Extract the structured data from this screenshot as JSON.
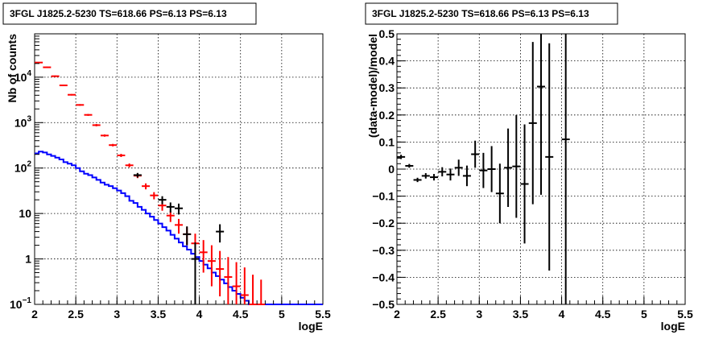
{
  "chart_data": [
    {
      "type": "scatter",
      "title": "3FGL J1825.2-5230 TS=618.66 PS=6.13 PS=6.13",
      "xlabel": "logE",
      "ylabel": "Nb of counts",
      "xlim": [
        2,
        5.5
      ],
      "ylim": [
        0.1,
        90000
      ],
      "yscale": "log",
      "grid": true,
      "x_ticks": [
        "2",
        "2.5",
        "3",
        "3.5",
        "4",
        "4.5",
        "5",
        "5.5"
      ],
      "y_ticks": [
        "10",
        "1",
        "10⁻¹"
      ],
      "y_ticks_labels": [
        "10^{-1}",
        "1",
        "10",
        "10^{2}",
        "10^{3}",
        "10^{4}"
      ],
      "y_tick_label_parts": [
        {
          "base": "10",
          "exp": "-1",
          "value": 0.1
        },
        {
          "base": "1",
          "exp": "",
          "value": 1
        },
        {
          "base": "10",
          "exp": "",
          "value": 10
        },
        {
          "base": "10",
          "exp": "2",
          "value": 100
        },
        {
          "base": "10",
          "exp": "3",
          "value": 1000
        },
        {
          "base": "10",
          "exp": "4",
          "value": 10000
        }
      ],
      "series": [
        {
          "color": "#0000ff",
          "style": "step",
          "edges": [
            2.0,
            2.05,
            2.1,
            2.15,
            2.2,
            2.25,
            2.3,
            2.35,
            2.4,
            2.45,
            2.5,
            2.55,
            2.6,
            2.65,
            2.7,
            2.75,
            2.8,
            2.85,
            2.9,
            2.95,
            3.0,
            3.05,
            3.1,
            3.15,
            3.2,
            3.25,
            3.3,
            3.35,
            3.4,
            3.45,
            3.5,
            3.55,
            3.6,
            3.65,
            3.7,
            3.75,
            3.8,
            3.85,
            3.9,
            3.95,
            4.0,
            4.05,
            4.1,
            4.15,
            4.2,
            4.25,
            4.3,
            4.35,
            4.4,
            4.45,
            4.5,
            4.55,
            4.6,
            4.65,
            4.7,
            4.75,
            4.8,
            4.85,
            4.9,
            4.95,
            5.0,
            5.5
          ],
          "values": [
            210,
            230,
            220,
            200,
            185,
            170,
            155,
            135,
            125,
            115,
            100,
            85,
            75,
            70,
            62,
            55,
            48,
            43,
            40,
            36,
            32,
            28,
            24,
            19,
            17,
            14,
            12,
            10,
            8.5,
            7.2,
            6.0,
            5.0,
            4.2,
            3.4,
            2.8,
            2.3,
            1.9,
            1.6,
            1.3,
            1.1,
            0.9,
            0.75,
            0.62,
            0.5,
            0.42,
            0.35,
            0.29,
            0.24,
            0.2,
            0.17,
            0.14,
            0.12,
            0.1,
            0.1,
            0.1,
            0.1,
            0.1,
            0.1,
            0.1,
            0.1,
            0.1
          ]
        },
        {
          "color": "#ff0000",
          "style": "errorbar",
          "points": [
            {
              "x": 2.05,
              "y": 21000,
              "lo": 20500,
              "hi": 21500
            },
            {
              "x": 2.15,
              "y": 16500,
              "lo": 16000,
              "hi": 17000
            },
            {
              "x": 2.25,
              "y": 10500,
              "lo": 10100,
              "hi": 10900
            },
            {
              "x": 2.35,
              "y": 6600,
              "lo": 6400,
              "hi": 6800
            },
            {
              "x": 2.45,
              "y": 4100,
              "lo": 3950,
              "hi": 4250
            },
            {
              "x": 2.55,
              "y": 2450,
              "lo": 2350,
              "hi": 2550
            },
            {
              "x": 2.65,
              "y": 1480,
              "lo": 1410,
              "hi": 1550
            },
            {
              "x": 2.75,
              "y": 880,
              "lo": 830,
              "hi": 930
            },
            {
              "x": 2.85,
              "y": 520,
              "lo": 490,
              "hi": 550
            },
            {
              "x": 2.95,
              "y": 320,
              "lo": 300,
              "hi": 340
            },
            {
              "x": 3.05,
              "y": 190,
              "lo": 175,
              "hi": 205
            },
            {
              "x": 3.15,
              "y": 115,
              "lo": 104,
              "hi": 126
            },
            {
              "x": 3.25,
              "y": 68,
              "lo": 60,
              "hi": 76
            },
            {
              "x": 3.35,
              "y": 40,
              "lo": 34,
              "hi": 46
            },
            {
              "x": 3.45,
              "y": 25,
              "lo": 20.5,
              "hi": 29.5
            },
            {
              "x": 3.55,
              "y": 15,
              "lo": 11.5,
              "hi": 18.5
            },
            {
              "x": 3.65,
              "y": 9,
              "lo": 6.5,
              "hi": 11.5
            },
            {
              "x": 3.75,
              "y": 5.6,
              "lo": 3.6,
              "hi": 7.6
            },
            {
              "x": 3.85,
              "y": 3.5,
              "lo": 2.0,
              "hi": 5.0
            },
            {
              "x": 3.95,
              "y": 2.2,
              "lo": 1.0,
              "hi": 3.6
            },
            {
              "x": 4.05,
              "y": 1.4,
              "lo": 0.5,
              "hi": 2.6
            },
            {
              "x": 4.15,
              "y": 0.9,
              "lo": 0.25,
              "hi": 2.0
            },
            {
              "x": 4.25,
              "y": 0.6,
              "lo": 0.15,
              "hi": 1.5
            },
            {
              "x": 4.35,
              "y": 0.4,
              "lo": 0.1,
              "hi": 1.1
            },
            {
              "x": 4.45,
              "y": 0.25,
              "lo": 0.1,
              "hi": 0.85
            },
            {
              "x": 4.55,
              "y": 0.16,
              "lo": 0.1,
              "hi": 0.65
            },
            {
              "x": 4.65,
              "y": 0.1,
              "lo": 0.1,
              "hi": 0.45
            },
            {
              "x": 4.75,
              "y": 0.1,
              "lo": 0.1,
              "hi": 0.35
            }
          ]
        },
        {
          "color": "#000000",
          "style": "errorbar",
          "points": [
            {
              "x": 3.25,
              "y": 70,
              "lo": 62,
              "hi": 78
            },
            {
              "x": 3.55,
              "y": 20,
              "lo": 16,
              "hi": 24
            },
            {
              "x": 3.65,
              "y": 14,
              "lo": 10.5,
              "hi": 17.5
            },
            {
              "x": 3.75,
              "y": 13,
              "lo": 9.5,
              "hi": 16.5
            },
            {
              "x": 3.85,
              "y": 3.5,
              "lo": 2.0,
              "hi": 5.2
            },
            {
              "x": 3.95,
              "y": 1.0,
              "lo": 0.1,
              "hi": 2.3
            },
            {
              "x": 4.25,
              "y": 4.0,
              "lo": 2.3,
              "hi": 5.8
            }
          ]
        }
      ]
    },
    {
      "type": "scatter",
      "title": "3FGL J1825.2-5230 TS=618.66 PS=6.13 PS=6.13",
      "xlabel": "logE",
      "ylabel": "(data-model)/model",
      "xlim": [
        2,
        5.5
      ],
      "ylim": [
        -0.5,
        0.5
      ],
      "grid": true,
      "x_ticks": [
        "2",
        "2.5",
        "3",
        "3.5",
        "4",
        "4.5",
        "5",
        "5.5"
      ],
      "y_ticks": [
        "-0.5",
        "-0.4",
        "-0.3",
        "-0.2",
        "-0.1",
        "0",
        "0.1",
        "0.2",
        "0.3",
        "0.4",
        "0.5"
      ],
      "y_tick_display": [
        "−0.5",
        "−0.4",
        "−0.3",
        "−0.2",
        "−0.1",
        "0",
        "0.1",
        "0.2",
        "0.3",
        "0.4",
        "0.5"
      ],
      "series": [
        {
          "color": "#000000",
          "style": "errorbar",
          "points": [
            {
              "x": 2.05,
              "y": 0.045,
              "err": 0.008
            },
            {
              "x": 2.15,
              "y": 0.012,
              "err": 0.007
            },
            {
              "x": 2.25,
              "y": -0.04,
              "err": 0.008
            },
            {
              "x": 2.35,
              "y": -0.025,
              "err": 0.01
            },
            {
              "x": 2.45,
              "y": -0.03,
              "err": 0.012
            },
            {
              "x": 2.55,
              "y": -0.01,
              "err": 0.017
            },
            {
              "x": 2.65,
              "y": -0.02,
              "err": 0.022
            },
            {
              "x": 2.75,
              "y": 0.005,
              "err": 0.03
            },
            {
              "x": 2.85,
              "y": -0.025,
              "err": 0.038
            },
            {
              "x": 2.95,
              "y": 0.055,
              "err": 0.05
            },
            {
              "x": 3.05,
              "y": -0.005,
              "err": 0.065
            },
            {
              "x": 3.15,
              "y": 0.0,
              "err": 0.085
            },
            {
              "x": 3.25,
              "y": -0.09,
              "err": 0.11
            },
            {
              "x": 3.35,
              "y": 0.005,
              "err": 0.145
            },
            {
              "x": 3.45,
              "y": 0.01,
              "err": 0.19
            },
            {
              "x": 3.55,
              "y": -0.055,
              "err": 0.22
            },
            {
              "x": 3.65,
              "y": 0.17,
              "err": 0.3
            },
            {
              "x": 3.75,
              "y": 0.305,
              "err": 0.4
            },
            {
              "x": 3.85,
              "y": 0.045,
              "err": 0.42
            },
            {
              "x": 4.05,
              "y": 0.11,
              "err": 0.62
            }
          ]
        }
      ]
    }
  ]
}
